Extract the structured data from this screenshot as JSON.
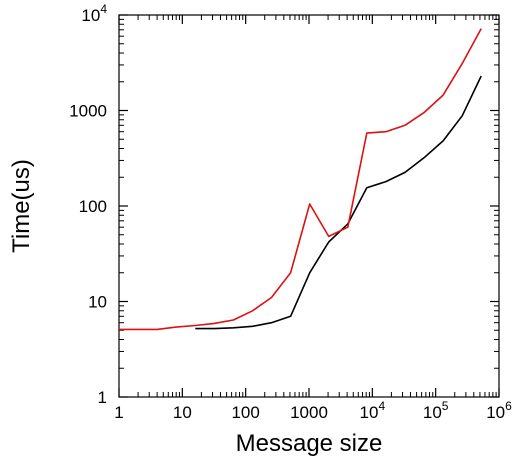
{
  "chart_data": {
    "type": "line",
    "title": "",
    "xlabel": "Message size",
    "ylabel": "Time(us)",
    "xscale": "log",
    "yscale": "log",
    "xlim": [
      1,
      1000000
    ],
    "ylim": [
      1,
      10000
    ],
    "grid": false,
    "legend": "none",
    "x_ticks": [
      {
        "base": "1",
        "exp": ""
      },
      {
        "base": "10",
        "exp": ""
      },
      {
        "base": "100",
        "exp": ""
      },
      {
        "base": "1000",
        "exp": ""
      },
      {
        "base": "10",
        "exp": "4"
      },
      {
        "base": "10",
        "exp": "5"
      },
      {
        "base": "10",
        "exp": "6"
      }
    ],
    "y_ticks": [
      {
        "base": "1",
        "exp": ""
      },
      {
        "base": "10",
        "exp": ""
      },
      {
        "base": "100",
        "exp": ""
      },
      {
        "base": "1000",
        "exp": ""
      },
      {
        "base": "10",
        "exp": "4"
      }
    ],
    "series": [
      {
        "color": "#000000",
        "x": [
          16,
          32,
          64,
          128,
          256,
          512,
          1024,
          2048,
          4096,
          8192,
          16384,
          32768,
          65536,
          131072,
          262144,
          524288
        ],
        "y": [
          5.2,
          5.2,
          5.3,
          5.5,
          6.0,
          7.0,
          20,
          42,
          65,
          155,
          180,
          225,
          320,
          480,
          880,
          2300
        ]
      },
      {
        "color": "#dd1111",
        "x": [
          1,
          2,
          4,
          8,
          16,
          32,
          64,
          128,
          256,
          512,
          1024,
          2048,
          4096,
          8192,
          16384,
          32768,
          65536,
          131072,
          262144,
          524288
        ],
        "y": [
          5.1,
          5.1,
          5.1,
          5.4,
          5.6,
          5.9,
          6.4,
          8.0,
          11,
          20,
          105,
          48,
          60,
          580,
          600,
          700,
          950,
          1450,
          3100,
          7200
        ]
      }
    ]
  }
}
